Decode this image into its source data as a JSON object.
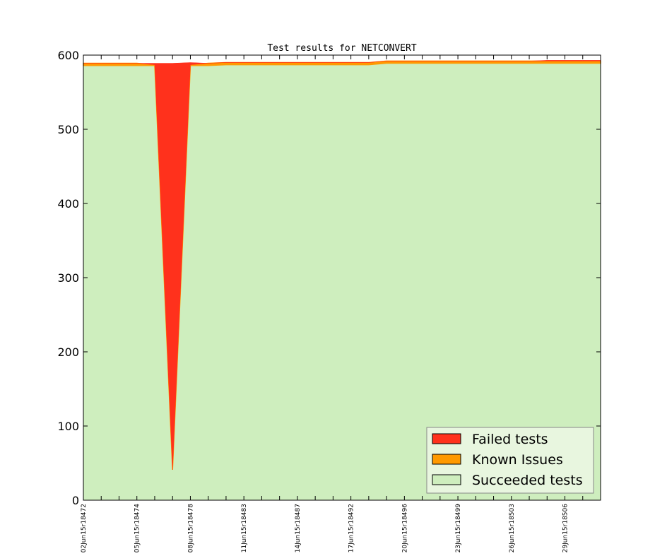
{
  "chart_data": {
    "type": "area",
    "stacked": true,
    "title": "Test results for NETCONVERT",
    "xlabel": "",
    "ylabel": "",
    "ylim": [
      0,
      600
    ],
    "xlim": [
      0,
      29
    ],
    "yticks": [
      0,
      100,
      200,
      300,
      400,
      500,
      600
    ],
    "xticks": [
      {
        "x": 0,
        "label": "02Jun15r18472"
      },
      {
        "x": 3,
        "label": "05Jun15r18474"
      },
      {
        "x": 6,
        "label": "08Jun15r18478"
      },
      {
        "x": 9,
        "label": "11Jun15r18483"
      },
      {
        "x": 12,
        "label": "14Jun15r18487"
      },
      {
        "x": 15,
        "label": "17Jun15r18492"
      },
      {
        "x": 18,
        "label": "20Jun15r18496"
      },
      {
        "x": 21,
        "label": "23Jun15r18499"
      },
      {
        "x": 24,
        "label": "26Jun15r18503"
      },
      {
        "x": 27,
        "label": "29Jun15r18506"
      }
    ],
    "x": [
      0,
      1,
      2,
      3,
      4,
      5,
      6,
      7,
      8,
      9,
      10,
      11,
      12,
      13,
      14,
      15,
      16,
      17,
      18,
      19,
      20,
      21,
      22,
      23,
      24,
      25,
      26,
      27,
      28,
      29
    ],
    "series": [
      {
        "name": "Succeeded tests",
        "color": "#ceeebe",
        "values": [
          586,
          586,
          586,
          586,
          586,
          41,
          586,
          586,
          587,
          587,
          587,
          587,
          587,
          587,
          587,
          587,
          587,
          589,
          589,
          589,
          589,
          589,
          589,
          589,
          589,
          589,
          589,
          589,
          589,
          589
        ]
      },
      {
        "name": "Known Issues",
        "color": "#ff9900",
        "values": [
          3,
          3,
          3,
          3,
          1,
          0,
          1,
          3,
          3,
          3,
          3,
          3,
          3,
          3,
          3,
          3,
          3,
          3,
          3,
          3,
          3,
          3,
          3,
          3,
          3,
          3,
          3,
          3,
          3,
          3
        ]
      },
      {
        "name": "Failed tests",
        "color": "#ff311c",
        "values": [
          0,
          0,
          0,
          0,
          2,
          548,
          3,
          0,
          0,
          0,
          0,
          0,
          0,
          0,
          0,
          0,
          0,
          0,
          0,
          0,
          0,
          0,
          0,
          0,
          0,
          0,
          1,
          1,
          1,
          1
        ]
      }
    ],
    "legend": {
      "placement": "lower-right",
      "order": [
        "Failed tests",
        "Known Issues",
        "Succeeded tests"
      ]
    },
    "grid": false
  }
}
